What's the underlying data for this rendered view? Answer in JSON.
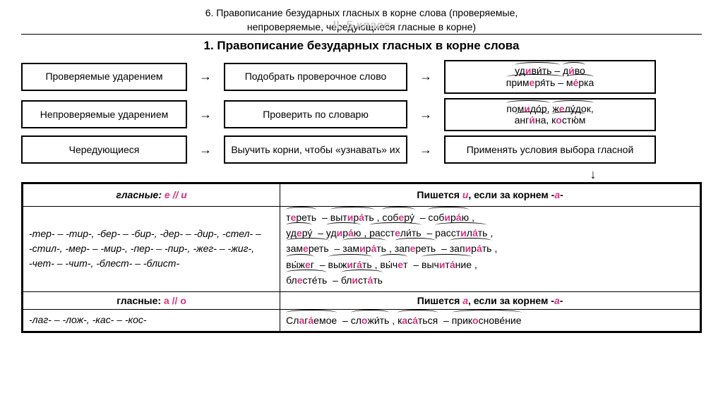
{
  "header": {
    "line1": "6. Правописание безударных гласных в корне слова (проверяемые,",
    "line2": "непроверяемые, чередующиеся гласные в корне)",
    "fadedClass": "II. 5 класс",
    "title": "1. Правописание безударных гласных в корне слова"
  },
  "flow": {
    "row1": {
      "c1": "Проверяемые ударением",
      "c2": "Подобрать проверочное слово"
    },
    "row2": {
      "c1": "Непроверяемые ударением",
      "c2": "Проверить по словарю"
    },
    "row3": {
      "c1": "Чередующиеся",
      "c2": "Выучить корни, чтобы «узнавать» их",
      "c3": "Применять условия выбора гласной"
    }
  },
  "examples": {
    "r1a_pre": "уд",
    "r1a_hl": "и",
    "r1a_post": "ви́ть – ",
    "r1b_pre": "д",
    "r1b_hl": "и́",
    "r1b_post": "во",
    "r1c_pre": "прим",
    "r1c_hl": "е",
    "r1c_post": "ря́ть – ",
    "r1d_pre": "м",
    "r1d_hl": "е́",
    "r1d_post": "рка",
    "r2a_pre": "пом",
    "r2a_hl": "и",
    "r2a_post": "до́р, ",
    "r2b_pre": "ж",
    "r2b_hl": "е",
    "r2b_post": "лу́док,",
    "r2c_pre": "анг",
    "r2c_hl": "и́",
    "r2c_post": "на, ",
    "r2d_pre": "к",
    "r2d_hl": "о",
    "r2d_post": "стю́м"
  },
  "table": {
    "h1a": "гласные: ",
    "h1b": "е // и",
    "h2a": "Пишется ",
    "h2b": "и",
    "h2c": ", если за корнем -",
    "h2d": "а",
    "h2e": "-",
    "rootsEI": "-тер- – -тир-, -бер- – -бир-, -дер- – -дир-, -стел- – -стил-, -мер- – -мир-, -пер- – -пир-, -жег- – -жиг-, -чет- – -чит-, -блест- – -блист-",
    "h3a": "гласные: ",
    "h3b": "а // о",
    "h4a": "Пишется ",
    "h4b": "а",
    "h4c": ", если за корнем -",
    "h4d": "а",
    "h4e": "-",
    "rootsAO": "-лаг- – -лож-, -кас- – -кос-"
  }
}
